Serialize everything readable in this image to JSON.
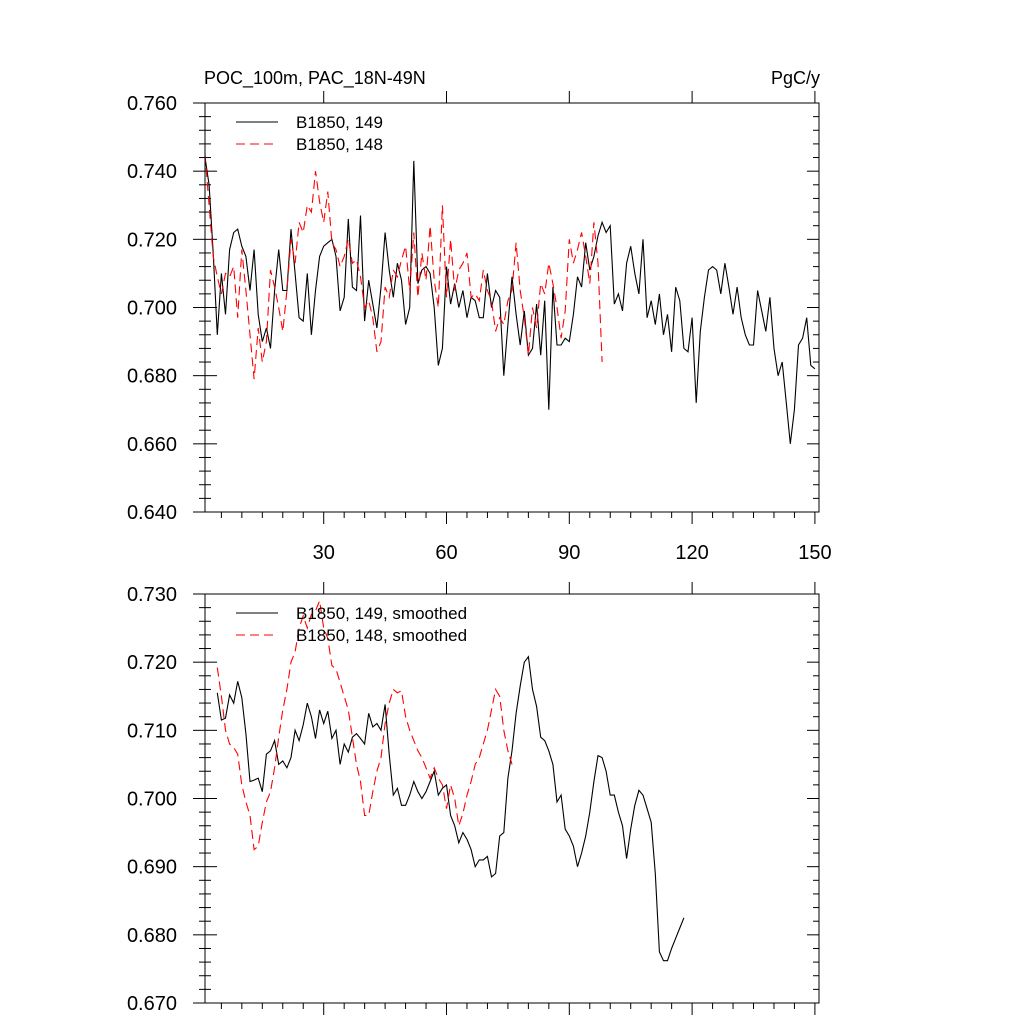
{
  "chart_data": [
    {
      "type": "line",
      "title": "POC_100m, PAC_18N-49N",
      "units": "PgC/y",
      "xlim": [
        1,
        151
      ],
      "ylim": [
        0.64,
        0.76
      ],
      "x_ticks": [
        30,
        60,
        90,
        120,
        150
      ],
      "x_tick_labels": [
        "30",
        "60",
        "90",
        "120",
        "150"
      ],
      "y_ticks": [
        0.64,
        0.66,
        0.68,
        0.7,
        0.72,
        0.74,
        0.76
      ],
      "y_tick_labels": [
        "0.640",
        "0.660",
        "0.680",
        "0.700",
        "0.720",
        "0.740",
        "0.760"
      ],
      "legend_position": "top-left",
      "series": [
        {
          "name": "B1850, 149",
          "color": "#000000",
          "dash": "solid",
          "x_start": 1,
          "values": [
            0.744,
            0.736,
            0.716,
            0.692,
            0.71,
            0.698,
            0.717,
            0.722,
            0.723,
            0.718,
            0.715,
            0.705,
            0.717,
            0.698,
            0.69,
            0.694,
            0.688,
            0.705,
            0.717,
            0.705,
            0.705,
            0.723,
            0.71,
            0.697,
            0.696,
            0.71,
            0.692,
            0.705,
            0.715,
            0.718,
            0.719,
            0.72,
            0.715,
            0.699,
            0.703,
            0.726,
            0.706,
            0.705,
            0.727,
            0.696,
            0.708,
            0.701,
            0.694,
            0.706,
            0.722,
            0.711,
            0.703,
            0.713,
            0.708,
            0.695,
            0.7,
            0.743,
            0.707,
            0.711,
            0.712,
            0.71,
            0.7,
            0.683,
            0.688,
            0.712,
            0.701,
            0.707,
            0.7,
            0.705,
            0.697,
            0.703,
            0.702,
            0.697,
            0.697,
            0.71,
            0.7,
            0.705,
            0.703,
            0.68,
            0.695,
            0.709,
            0.698,
            0.689,
            0.699,
            0.686,
            0.688,
            0.701,
            0.686,
            0.702,
            0.67,
            0.706,
            0.689,
            0.689,
            0.691,
            0.69,
            0.698,
            0.709,
            0.706,
            0.719,
            0.711,
            0.715,
            0.721,
            0.725,
            0.722,
            0.724,
            0.701,
            0.704,
            0.699,
            0.713,
            0.718,
            0.71,
            0.704,
            0.72,
            0.697,
            0.702,
            0.695,
            0.704,
            0.692,
            0.698,
            0.687,
            0.706,
            0.702,
            0.688,
            0.687,
            0.697,
            0.672,
            0.693,
            0.703,
            0.711,
            0.712,
            0.711,
            0.704,
            0.713,
            0.706,
            0.698,
            0.706,
            0.697,
            0.692,
            0.689,
            0.689,
            0.705,
            0.699,
            0.693,
            0.703,
            0.688,
            0.68,
            0.684,
            0.672,
            0.66,
            0.67,
            0.689,
            0.691,
            0.697,
            0.683,
            0.682
          ]
        },
        {
          "name": "B1850, 148",
          "color": "#ff0000",
          "dash": "dashed",
          "x_start": 1,
          "values": [
            0.745,
            0.73,
            0.715,
            0.709,
            0.704,
            0.71,
            0.709,
            0.712,
            0.697,
            0.717,
            0.705,
            0.692,
            0.679,
            0.694,
            0.684,
            0.69,
            0.711,
            0.706,
            0.7,
            0.693,
            0.705,
            0.72,
            0.713,
            0.725,
            0.722,
            0.73,
            0.728,
            0.74,
            0.731,
            0.725,
            0.734,
            0.719,
            0.717,
            0.712,
            0.715,
            0.72,
            0.713,
            0.714,
            0.709,
            0.7,
            0.702,
            0.697,
            0.687,
            0.69,
            0.706,
            0.703,
            0.711,
            0.709,
            0.714,
            0.718,
            0.705,
            0.722,
            0.703,
            0.716,
            0.708,
            0.724,
            0.708,
            0.7,
            0.73,
            0.703,
            0.72,
            0.705,
            0.711,
            0.713,
            0.716,
            0.703,
            0.704,
            0.702,
            0.711,
            0.705,
            0.702,
            0.693,
            0.697,
            0.695,
            0.702,
            0.705,
            0.719,
            0.705,
            0.697,
            0.686,
            0.7,
            0.694,
            0.707,
            0.704,
            0.713,
            0.707,
            0.7,
            0.691,
            0.699,
            0.72,
            0.713,
            0.717,
            0.722,
            0.715,
            0.707,
            0.725,
            0.713,
            0.684
          ],
          "x_end_note": ""
        }
      ]
    },
    {
      "type": "line",
      "title": "",
      "xlim": [
        1,
        151
      ],
      "ylim": [
        0.67,
        0.73
      ],
      "x_ticks": [
        30,
        60,
        90,
        120,
        150
      ],
      "y_ticks": [
        0.67,
        0.68,
        0.69,
        0.7,
        0.71,
        0.72,
        0.73
      ],
      "y_tick_labels": [
        "0.670",
        "0.680",
        "0.690",
        "0.700",
        "0.710",
        "0.720",
        "0.730"
      ],
      "legend_position": "top-left",
      "series": [
        {
          "name": "B1850, 149, smoothed",
          "color": "#000000",
          "dash": "solid",
          "x_start": 4,
          "values": [
            0.7155,
            0.7115,
            0.7118,
            0.7152,
            0.714,
            0.7172,
            0.7148,
            0.7095,
            0.7025,
            0.7027,
            0.703,
            0.701,
            0.7065,
            0.707,
            0.7085,
            0.705,
            0.7055,
            0.7045,
            0.706,
            0.71,
            0.7085,
            0.7108,
            0.714,
            0.712,
            0.7088,
            0.713,
            0.711,
            0.7128,
            0.7088,
            0.71,
            0.705,
            0.708,
            0.7068,
            0.709,
            0.7095,
            0.7088,
            0.708,
            0.7125,
            0.7105,
            0.711,
            0.71,
            0.7138,
            0.7065,
            0.7005,
            0.7015,
            0.699,
            0.699,
            0.7005,
            0.7025,
            0.701,
            0.7,
            0.701,
            0.7025,
            0.704,
            0.7005,
            0.7015,
            0.702,
            0.6975,
            0.696,
            0.6935,
            0.695,
            0.694,
            0.6925,
            0.69,
            0.691,
            0.691,
            0.6915,
            0.6885,
            0.689,
            0.6945,
            0.695,
            0.703,
            0.707,
            0.7125,
            0.7165,
            0.72,
            0.7208,
            0.716,
            0.7135,
            0.709,
            0.7085,
            0.707,
            0.705,
            0.6995,
            0.7005,
            0.6955,
            0.6945,
            0.693,
            0.69,
            0.692,
            0.6945,
            0.698,
            0.7025,
            0.7063,
            0.706,
            0.704,
            0.7005,
            0.7005,
            0.698,
            0.696,
            0.6912,
            0.6955,
            0.699,
            0.7012,
            0.7005,
            0.6985,
            0.6965,
            0.689,
            0.6775,
            0.6762,
            0.6762,
            0.678,
            0.6795,
            0.681,
            0.6825
          ]
        },
        {
          "name": "B1850, 148, smoothed",
          "color": "#ff0000",
          "dash": "dashed",
          "x_start": 4,
          "values": [
            0.7192,
            0.715,
            0.71,
            0.708,
            0.7075,
            0.7065,
            0.702,
            0.6995,
            0.6975,
            0.6925,
            0.693,
            0.6965,
            0.6995,
            0.701,
            0.7045,
            0.709,
            0.713,
            0.716,
            0.72,
            0.7215,
            0.725,
            0.7268,
            0.725,
            0.727,
            0.7275,
            0.729,
            0.725,
            0.7235,
            0.7195,
            0.719,
            0.717,
            0.715,
            0.713,
            0.709,
            0.705,
            0.7025,
            0.6975,
            0.6975,
            0.701,
            0.704,
            0.706,
            0.711,
            0.714,
            0.716,
            0.7155,
            0.7158,
            0.712,
            0.71,
            0.7085,
            0.707,
            0.706,
            0.7045,
            0.703,
            0.7045,
            0.703,
            0.702,
            0.6985,
            0.702,
            0.7,
            0.696,
            0.6978,
            0.7005,
            0.7025,
            0.705,
            0.706,
            0.708,
            0.71,
            0.713,
            0.716,
            0.715,
            0.71,
            0.707,
            0.705
          ]
        }
      ]
    }
  ]
}
